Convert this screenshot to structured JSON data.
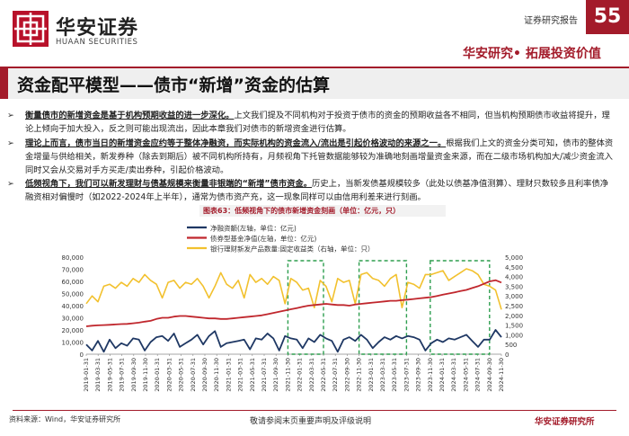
{
  "header": {
    "logo_cn": "华安证券",
    "logo_en": "HUAAN SECURITIES",
    "report_type": "证券研究报告",
    "page_number": "55",
    "slogan": "华安研究• 拓展投资价值"
  },
  "main_title": "资金配平模型——债市“新增”资金的估算",
  "bullets": [
    {
      "parts": [
        {
          "text": "衡量债市的新增资金是基于机构预期收益的进一步深化。",
          "style": "bu"
        },
        {
          "text": "上文我们提及不同机构对于投资于债市的资金的预期收益各不相同，但当机构预期债市收益将提升，理论上倾向于加大投入，反之则可能出现流出，因此本章我们对债市的新增资金进行估算。",
          "style": "n"
        }
      ]
    },
    {
      "parts": [
        {
          "text": "理论上而言，债市当日的新增资金应约等于整体净融资，而实际机构的资金流入/流出是引起价格波动的来源之一。",
          "style": "bu"
        },
        {
          "text": "根据我们上文的资金分类可知，债市的整体资金增量与供给相关，新发券种（除去到期后）被不同机构所持有，月频视角下托管数据能够较为准确地刻画增量资金来源，而在二级市场机构加大/减少资金流入同时又会从交易对手方买走/卖出券种，引起价格波动。",
          "style": "n"
        }
      ]
    },
    {
      "parts": [
        {
          "text": "低频视角下，我们可以新发理财与债基规模来衡量非银端的“新增”债市资金。",
          "style": "bu"
        },
        {
          "text": "历史上，当新发债基规模较多（此处以债基净值测算）、理财只数较多且利率债净融资相对偏慢时（如2022-2024年上半年），通常为债市资产充，这一现象同样可以由信用利差来进行刻画。",
          "style": "n"
        }
      ]
    }
  ],
  "figure_caption": "图表63：低频视角下的债市新增资金刻画（单位：亿元，只）",
  "footer": {
    "source": "资料来源：Wind，华安证券研究所",
    "disclaimer": "敬请参阅末页重要声明及评级说明",
    "firm": "华安证券研究所"
  },
  "colors": {
    "brand_red": "#a31b2a",
    "net_financing": "#1f3864",
    "bond_fund_nav": "#c0272d",
    "wmp_count": "#f2c12e",
    "highlight_box": "#2e9e4f"
  },
  "chart_data": {
    "type": "line",
    "legend": [
      "净融资额(左轴，单位：亿元)",
      "债券型基金净值(左轴，单位：亿元)",
      "银行理财新发产品数量:固定收益类（右轴，单位：只）"
    ],
    "y_left": {
      "min": 0,
      "max": 80000,
      "ticks": [
        0,
        10000,
        20000,
        30000,
        40000,
        50000,
        60000,
        70000,
        80000
      ],
      "tick_labels": [
        "0",
        "10,000",
        "20,000",
        "30,000",
        "40,000",
        "50,000",
        "60,000",
        "70,000",
        "80,000"
      ]
    },
    "y_right": {
      "min": 0,
      "max": 5000,
      "ticks": [
        0,
        500,
        1000,
        1500,
        2000,
        2500,
        3000,
        3500,
        4000,
        4500,
        5000
      ],
      "tick_labels": [
        "0",
        "500",
        "1,000",
        "1,500",
        "2,000",
        "2,500",
        "3,000",
        "3,500",
        "4,000",
        "4,500",
        "5,000"
      ]
    },
    "x_tick_labels": [
      "2019-01-31",
      "2019-03-31",
      "2019-05-31",
      "2019-07-31",
      "2019-09-30",
      "2019-11-30",
      "2020-01-31",
      "2020-03-31",
      "2020-05-31",
      "2020-07-31",
      "2020-09-30",
      "2020-11-30",
      "2021-01-31",
      "2021-03-31",
      "2021-05-31",
      "2021-07-31",
      "2021-09-30",
      "2021-11-30",
      "2022-01-31",
      "2022-03-31",
      "2022-05-31",
      "2022-07-31",
      "2022-09-30",
      "2022-11-30",
      "2023-01-31",
      "2023-03-31",
      "2023-05-31",
      "2023-07-31",
      "2023-09-30",
      "2023-11-30",
      "2024-01-31",
      "2024-03-31",
      "2024-05-31",
      "2024-07-31",
      "2024-09-30",
      "2024-11-30"
    ],
    "series": [
      {
        "name": "净融资额",
        "axis": "left",
        "values": [
          8000,
          3000,
          11000,
          2000,
          12000,
          5000,
          9000,
          7000,
          13000,
          12000,
          3000,
          10000,
          14000,
          15000,
          11000,
          17000,
          6000,
          9000,
          12000,
          16000,
          8000,
          15000,
          19000,
          6000,
          9000,
          10000,
          11000,
          12000,
          4000,
          13000,
          12000,
          17000,
          13000,
          3000,
          15000,
          13000,
          12000,
          5000,
          13000,
          10000,
          16000,
          13000,
          11000,
          2000,
          12000,
          14000,
          11000,
          16000,
          12000,
          5000,
          10000,
          14000,
          12000,
          15000,
          13000,
          15000,
          14000,
          12000,
          3000,
          9000,
          12000,
          10000,
          13000,
          12000,
          14000,
          16000,
          11000,
          6000,
          12000,
          12000,
          20000,
          14000
        ]
      },
      {
        "name": "债券型基金净值",
        "axis": "left",
        "values": [
          23000,
          23500,
          23800,
          24000,
          24200,
          24500,
          24800,
          25000,
          25500,
          26000,
          26800,
          27500,
          29000,
          30000,
          30000,
          31000,
          31500,
          31500,
          31000,
          30500,
          30000,
          29500,
          29500,
          29000,
          29000,
          29500,
          30000,
          30500,
          31000,
          31500,
          32000,
          33000,
          34000,
          35000,
          36000,
          37000,
          38000,
          39000,
          40000,
          40500,
          41000,
          41500,
          41000,
          40500,
          40500,
          40000,
          41000,
          41500,
          42000,
          42500,
          43000,
          43500,
          44000,
          44000,
          44500,
          45000,
          45500,
          46000,
          46500,
          47000,
          48000,
          49000,
          50000,
          51000,
          52000,
          53000,
          54500,
          56000,
          58000,
          60000,
          61000,
          59000
        ]
      },
      {
        "name": "银行理财新发产品数量:固定收益类",
        "axis": "right",
        "values": [
          2600,
          3000,
          2700,
          3500,
          3600,
          3400,
          3700,
          3500,
          3900,
          3700,
          4100,
          3800,
          3600,
          2900,
          3700,
          3800,
          3400,
          3700,
          3600,
          3900,
          3500,
          2900,
          3500,
          4200,
          3600,
          3400,
          3800,
          2900,
          4100,
          3700,
          3900,
          3600,
          4000,
          3800,
          2600,
          3900,
          3700,
          3300,
          3400,
          2400,
          3800,
          3500,
          2700,
          3900,
          3700,
          3800,
          2600,
          4100,
          4200,
          3900,
          3800,
          3500,
          3900,
          4100,
          2400,
          3700,
          3600,
          3400,
          4100,
          4100,
          4200,
          4300,
          3800,
          4000,
          4200,
          4400,
          4300,
          4100,
          3600,
          3500,
          3300,
          2300
        ]
      }
    ],
    "highlight_ranges": [
      [
        "2021-11-30",
        "2022-05-31"
      ],
      [
        "2022-11-30",
        "2023-07-31"
      ],
      [
        "2023-11-30",
        "2024-09-30"
      ]
    ]
  }
}
